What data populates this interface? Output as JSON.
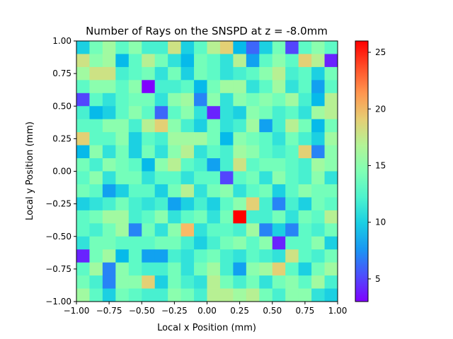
{
  "chart_data": {
    "type": "heatmap",
    "title": "Number of Rays on the SNSPD at z = -8.0mm",
    "xlabel": "Local x Position (mm)",
    "ylabel": "Local y Position (mm)",
    "xlim": [
      -1.0,
      1.0
    ],
    "ylim": [
      -1.0,
      1.0
    ],
    "xticks": [
      "−1.00",
      "−0.75",
      "−0.50",
      "−0.25",
      "0.00",
      "0.25",
      "0.50",
      "0.75",
      "1.00"
    ],
    "yticks": [
      "−1.00",
      "−0.75",
      "−0.50",
      "−0.25",
      "0.00",
      "0.25",
      "0.50",
      "0.75",
      "1.00"
    ],
    "colormap": "rainbow",
    "colorbar_range": [
      3,
      26
    ],
    "colorbar_ticks": [
      "5",
      "10",
      "15",
      "20",
      "25"
    ],
    "grid": false,
    "bins": 20,
    "values_row_order": "top-to-bottom",
    "values": [
      [
        10,
        14,
        16,
        13,
        15,
        12,
        12,
        18,
        10,
        13,
        17,
        19,
        9,
        6,
        10,
        14,
        5,
        13,
        15,
        13
      ],
      [
        18,
        15,
        16,
        9,
        13,
        17,
        14,
        11,
        9,
        14,
        13,
        11,
        17,
        8,
        13,
        15,
        13,
        19,
        17,
        4
      ],
      [
        16,
        18,
        18,
        12,
        13,
        14,
        11,
        14,
        10,
        14,
        13,
        11,
        12,
        13,
        15,
        17,
        12,
        13,
        10,
        14
      ],
      [
        13,
        15,
        15,
        13,
        15,
        3,
        12,
        12,
        13,
        9,
        14,
        16,
        16,
        11,
        13,
        16,
        11,
        13,
        8,
        13
      ],
      [
        5,
        13,
        11,
        13,
        14,
        14,
        11,
        15,
        16,
        7,
        15,
        11,
        15,
        14,
        15,
        14,
        16,
        12,
        9,
        17
      ],
      [
        12,
        9,
        10,
        13,
        15,
        13,
        6,
        13,
        15,
        11,
        4,
        11,
        10,
        15,
        14,
        12,
        13,
        11,
        16,
        17
      ],
      [
        13,
        13,
        15,
        15,
        12,
        17,
        19,
        15,
        12,
        10,
        14,
        11,
        12,
        16,
        8,
        12,
        17,
        14,
        9,
        14
      ],
      [
        19,
        13,
        13,
        15,
        10,
        13,
        12,
        16,
        16,
        16,
        14,
        9,
        15,
        14,
        13,
        11,
        14,
        12,
        10,
        16
      ],
      [
        9,
        15,
        11,
        14,
        10,
        14,
        11,
        15,
        17,
        11,
        13,
        12,
        16,
        15,
        13,
        12,
        13,
        19,
        7,
        15
      ],
      [
        14,
        12,
        15,
        14,
        13,
        9,
        15,
        17,
        13,
        12,
        8,
        12,
        18,
        13,
        14,
        14,
        13,
        12,
        16,
        15
      ],
      [
        13,
        15,
        11,
        14,
        14,
        11,
        13,
        13,
        11,
        13,
        13,
        5,
        13,
        14,
        11,
        15,
        13,
        12,
        15,
        11
      ],
      [
        14,
        13,
        8,
        10,
        13,
        13,
        10,
        14,
        17,
        11,
        14,
        15,
        11,
        13,
        14,
        10,
        13,
        15,
        14,
        14
      ],
      [
        10,
        11,
        12,
        14,
        12,
        11,
        12,
        8,
        10,
        12,
        10,
        13,
        15,
        19,
        12,
        7,
        12,
        10,
        14,
        13
      ],
      [
        13,
        14,
        16,
        16,
        12,
        13,
        15,
        11,
        13,
        14,
        11,
        14,
        26,
        12,
        12,
        14,
        11,
        14,
        13,
        17
      ],
      [
        13,
        12,
        14,
        16,
        7,
        14,
        11,
        15,
        20,
        11,
        13,
        13,
        12,
        16,
        7,
        10,
        7,
        13,
        12,
        14
      ],
      [
        11,
        14,
        14,
        13,
        13,
        13,
        14,
        14,
        12,
        10,
        12,
        14,
        15,
        13,
        15,
        4,
        13,
        13,
        15,
        10
      ],
      [
        4,
        14,
        16,
        9,
        13,
        8,
        8,
        12,
        11,
        13,
        14,
        12,
        11,
        13,
        12,
        11,
        18,
        13,
        12,
        14
      ],
      [
        13,
        16,
        7,
        15,
        13,
        12,
        12,
        14,
        11,
        14,
        16,
        12,
        8,
        15,
        16,
        19,
        13,
        10,
        14,
        16
      ],
      [
        14,
        12,
        7,
        15,
        15,
        19,
        10,
        14,
        12,
        11,
        17,
        14,
        12,
        14,
        11,
        14,
        15,
        13,
        16,
        12
      ],
      [
        16,
        13,
        10,
        14,
        13,
        12,
        12,
        15,
        14,
        12,
        17,
        17,
        16,
        17,
        14,
        12,
        15,
        15,
        11,
        10
      ]
    ]
  }
}
